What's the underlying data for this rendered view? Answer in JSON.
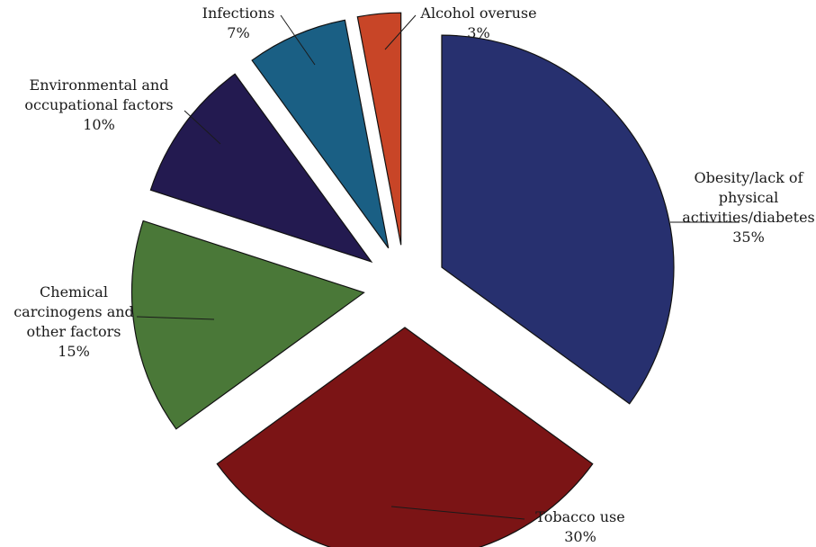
{
  "chart_data": {
    "type": "pie",
    "exploded": true,
    "title": "",
    "slices": [
      {
        "label_lines": [
          "Obesity/lack of",
          "physical",
          "activities/diabetes"
        ],
        "value": 35,
        "value_label": "35%",
        "color": "#27306f"
      },
      {
        "label_lines": [
          "Tobacco use"
        ],
        "value": 30,
        "value_label": "30%",
        "color": "#7b1415"
      },
      {
        "label_lines": [
          "Chemical",
          "carcinogens and",
          "other factors"
        ],
        "value": 15,
        "value_label": "15%",
        "color": "#4a7838"
      },
      {
        "label_lines": [
          "Environmental and",
          "occupational factors"
        ],
        "value": 10,
        "value_label": "10%",
        "color": "#231a50"
      },
      {
        "label_lines": [
          "Infections"
        ],
        "value": 7,
        "value_label": "7%",
        "color": "#1a5f84"
      },
      {
        "label_lines": [
          "Alcohol overuse"
        ],
        "value": 3,
        "value_label": "3%",
        "color": "#c84527"
      }
    ]
  }
}
